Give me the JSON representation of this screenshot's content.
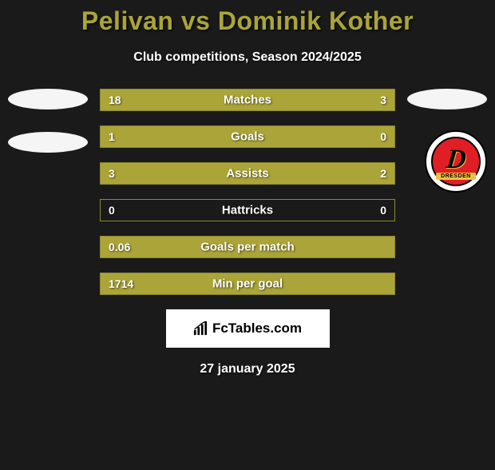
{
  "title": "Pelivan vs Dominik Kother",
  "subtitle": "Club competitions, Season 2024/2025",
  "colors": {
    "background": "#1a1a1a",
    "accent": "#aba438",
    "bar_border": "#8d8830",
    "text": "#ffffff",
    "footer_bg": "#ffffff"
  },
  "typography": {
    "title_fontsize": 32,
    "title_weight": 900,
    "subtitle_fontsize": 16,
    "label_fontsize": 15,
    "value_fontsize": 14,
    "footer_fontsize": 17
  },
  "bars": [
    {
      "label": "Matches",
      "left_val": "18",
      "right_val": "3",
      "left_pct": 86,
      "right_pct": 14
    },
    {
      "label": "Goals",
      "left_val": "1",
      "right_val": "0",
      "left_pct": 100,
      "right_pct": 0
    },
    {
      "label": "Assists",
      "left_val": "3",
      "right_val": "2",
      "left_pct": 60,
      "right_pct": 40
    },
    {
      "label": "Hattricks",
      "left_val": "0",
      "right_val": "0",
      "left_pct": 0,
      "right_pct": 0
    },
    {
      "label": "Goals per match",
      "left_val": "0.06",
      "right_val": "",
      "left_pct": 100,
      "right_pct": 0
    },
    {
      "label": "Min per goal",
      "left_val": "1714",
      "right_val": "",
      "left_pct": 100,
      "right_pct": 0
    }
  ],
  "badge": {
    "letter": "D",
    "ribbon": "DRESDEN",
    "bg_outer": "#ffffff",
    "bg_inner": "#e01e26",
    "ribbon_bg": "#f0c040"
  },
  "footer": {
    "logo_text": "FcTables.com",
    "date": "27 january 2025"
  }
}
